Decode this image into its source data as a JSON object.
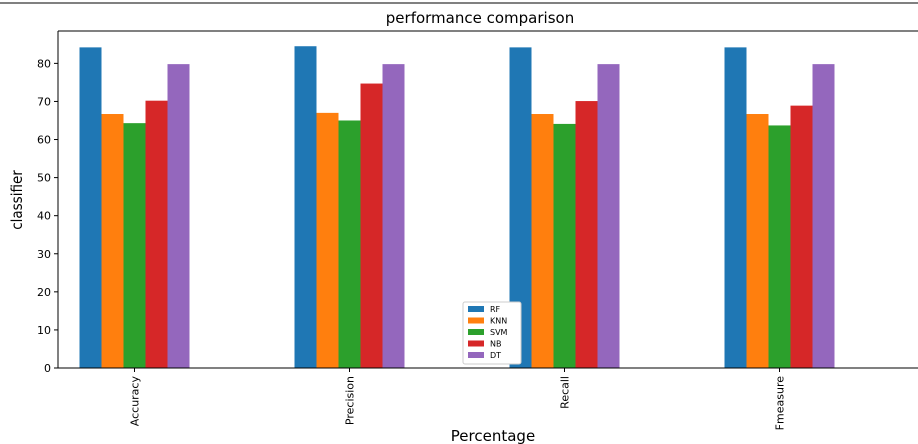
{
  "chart_data": {
    "type": "bar",
    "title": "performance comparison",
    "xlabel": "Percentage",
    "ylabel": "classifier",
    "categories": [
      "Accuracy",
      "Precision",
      "Recall",
      "Fmeasure"
    ],
    "series": [
      {
        "name": "RF",
        "color": "#1f77b4",
        "values": [
          84.2,
          84.5,
          84.2,
          84.2
        ]
      },
      {
        "name": "KNN",
        "color": "#ff7f0e",
        "values": [
          66.7,
          67.0,
          66.7,
          66.7
        ]
      },
      {
        "name": "SVM",
        "color": "#2ca02c",
        "values": [
          64.3,
          65.0,
          64.1,
          63.7
        ]
      },
      {
        "name": "NB",
        "color": "#d62728",
        "values": [
          70.2,
          74.7,
          70.1,
          68.9
        ]
      },
      {
        "name": "DT",
        "color": "#9467bd",
        "values": [
          79.8,
          79.8,
          79.8,
          79.8
        ]
      }
    ],
    "yticks": [
      0,
      10,
      20,
      30,
      40,
      50,
      60,
      70,
      80
    ],
    "ylim": [
      0,
      88.5
    ],
    "grid": false,
    "legend_position": "lower-center"
  }
}
